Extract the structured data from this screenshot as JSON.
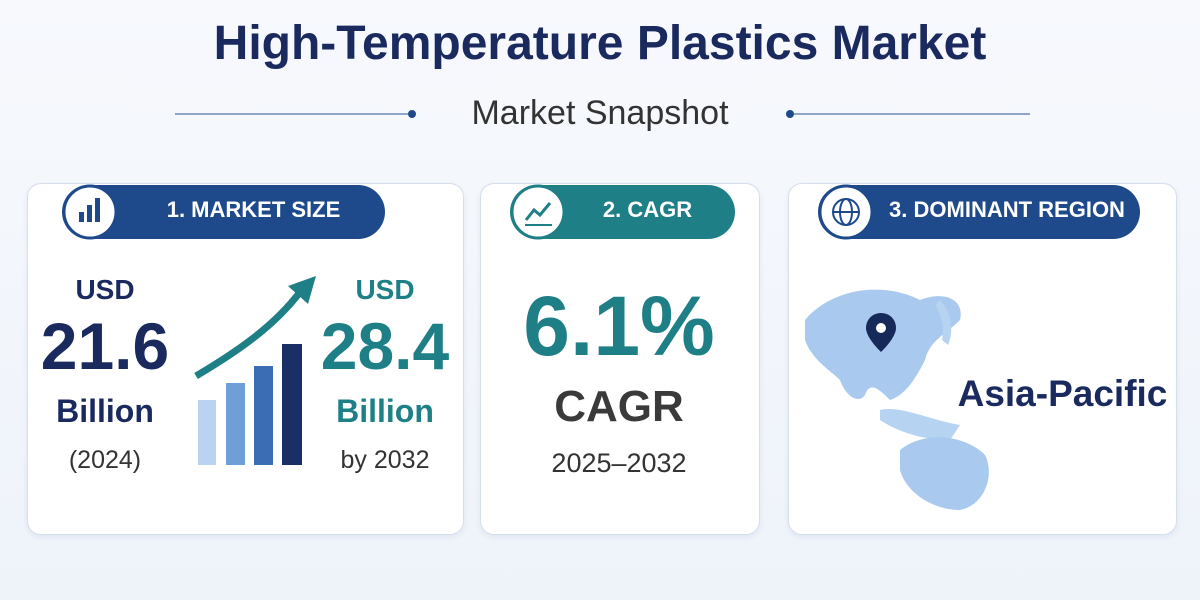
{
  "header": {
    "title": "High-Temperature Plastics Market",
    "subtitle": "Market Snapshot"
  },
  "cards": [
    {
      "heading": "1. MARKET SIZE",
      "start": {
        "currency": "USD",
        "amount": "21.6",
        "unit": "Billion",
        "period": "(2024)"
      },
      "end": {
        "currency": "USD",
        "amount": "28.4",
        "unit": "Billion",
        "period": "by 2032"
      }
    },
    {
      "heading": "2. CAGR",
      "rate": "6.1%",
      "label": "CAGR",
      "period": "2025–2032"
    },
    {
      "heading": "3. DOMINANT REGION",
      "region": "Asia-Pacific"
    }
  ]
}
